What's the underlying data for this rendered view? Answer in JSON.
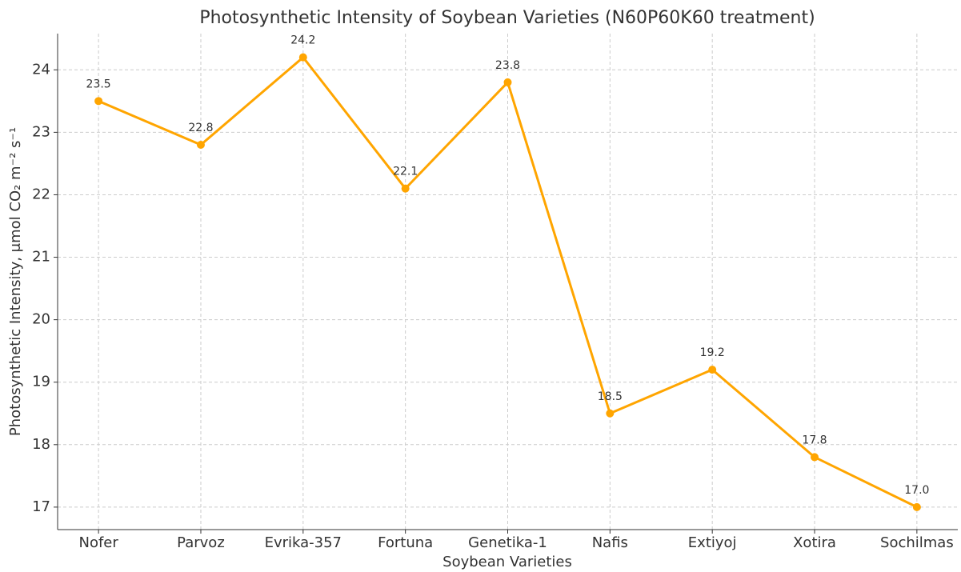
{
  "chart_data": {
    "type": "line",
    "title": "Photosynthetic Intensity of Soybean Varieties (N60P60K60 treatment)",
    "x_label": "Soybean Varieties",
    "y_label": "Photosynthetic Intensity, μmol CO₂ m⁻² s⁻¹",
    "categories": [
      "Nofer",
      "Parvoz",
      "Evrika-357",
      "Fortuna",
      "Genetika-1",
      "Nafis",
      "Extiyoj",
      "Xotira",
      "Sochilmas"
    ],
    "series": [
      {
        "name": "Photosynthetic Intensity",
        "color": "#FFA500",
        "values": [
          23.5,
          22.8,
          24.2,
          22.1,
          23.8,
          18.5,
          19.2,
          17.8,
          17.0
        ],
        "value_labels": [
          "23.5",
          "22.8",
          "24.2",
          "22.1",
          "23.8",
          "18.5",
          "19.2",
          "17.8",
          "17.0"
        ]
      }
    ],
    "ylim": [
      16.64,
      24.58
    ],
    "yticks": [
      17,
      18,
      19,
      20,
      21,
      22,
      23,
      24
    ],
    "grid": true
  }
}
